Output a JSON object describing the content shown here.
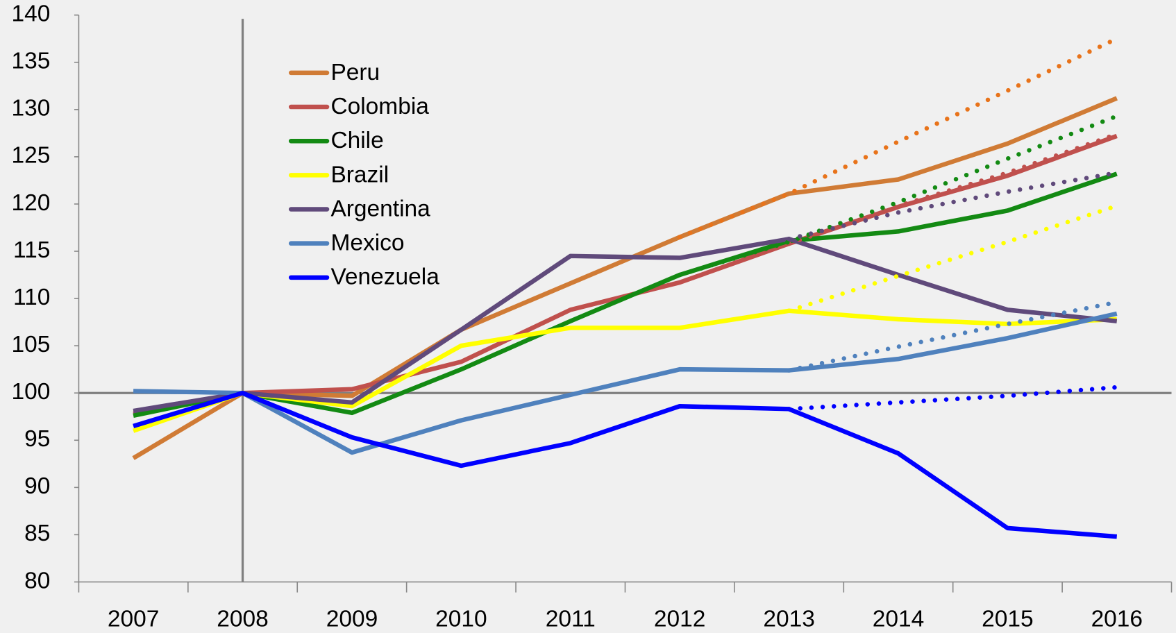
{
  "chart_data": {
    "type": "line",
    "categories": [
      "2007",
      "2008",
      "2009",
      "2010",
      "2011",
      "2012",
      "2013",
      "2014",
      "2015",
      "2016"
    ],
    "ylim": [
      80,
      140
    ],
    "yticks": [
      80,
      85,
      90,
      95,
      100,
      105,
      110,
      115,
      120,
      125,
      130,
      135,
      140
    ],
    "reference_x": "2008",
    "reference_y": 100,
    "series": [
      {
        "name": "Peru",
        "color": "#d07b35",
        "values": [
          93.1,
          100,
          99.7,
          106.7,
          111.6,
          116.5,
          121.1,
          122.6,
          126.4,
          131.2
        ]
      },
      {
        "name": "Colombia",
        "color": "#c0504d",
        "values": [
          97.8,
          100,
          100.4,
          103.3,
          108.8,
          111.7,
          115.8,
          119.7,
          123.0,
          127.2
        ]
      },
      {
        "name": "Chile",
        "color": "#138a13",
        "values": [
          97.6,
          100,
          97.9,
          102.5,
          107.6,
          112.5,
          116.1,
          117.1,
          119.3,
          123.2
        ]
      },
      {
        "name": "Brazil",
        "color": "#ffff00",
        "values": [
          96.0,
          100,
          98.6,
          105.0,
          106.9,
          106.9,
          108.7,
          107.8,
          107.3,
          107.8
        ]
      },
      {
        "name": "Argentina",
        "color": "#604a7b",
        "values": [
          98.1,
          100,
          99.0,
          106.7,
          114.5,
          114.3,
          116.3,
          112.5,
          108.8,
          107.6
        ]
      },
      {
        "name": "Mexico",
        "color": "#4f81bd",
        "values": [
          100.2,
          100,
          93.7,
          97.1,
          99.8,
          102.5,
          102.4,
          103.6,
          105.8,
          108.4
        ]
      },
      {
        "name": "Venezuela",
        "color": "#0000ff",
        "values": [
          96.5,
          100,
          95.3,
          92.3,
          94.7,
          98.6,
          98.3,
          93.6,
          85.7,
          84.8
        ]
      }
    ],
    "projections": [
      {
        "color": "#e8731a",
        "values": [
          null,
          null,
          null,
          null,
          null,
          116.5,
          121.1,
          126.6,
          132.0,
          137.5
        ]
      },
      {
        "color": "#c0504d",
        "values": [
          null,
          null,
          null,
          null,
          null,
          null,
          115.8,
          119.8,
          123.3,
          127.4
        ]
      },
      {
        "color": "#138a13",
        "values": [
          null,
          null,
          null,
          null,
          null,
          112.5,
          116.0,
          120.2,
          124.8,
          129.3
        ]
      },
      {
        "color": "#ffff00",
        "values": [
          null,
          null,
          null,
          null,
          null,
          null,
          108.7,
          112.4,
          116.0,
          119.8
        ]
      },
      {
        "color": "#604a7b",
        "values": [
          null,
          null,
          null,
          null,
          null,
          null,
          116.3,
          119.1,
          121.3,
          123.3
        ]
      },
      {
        "color": "#4f81bd",
        "values": [
          null,
          null,
          null,
          null,
          null,
          null,
          102.4,
          104.9,
          107.3,
          109.6
        ]
      },
      {
        "color": "#0000ff",
        "values": [
          null,
          null,
          null,
          null,
          null,
          null,
          98.3,
          99.0,
          99.7,
          100.6
        ]
      }
    ]
  }
}
